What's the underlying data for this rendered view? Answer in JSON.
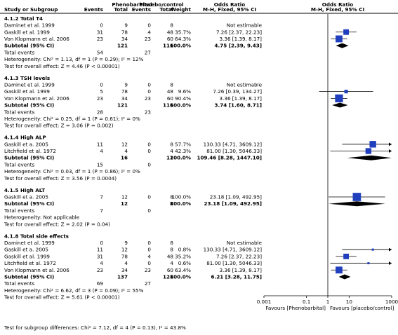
{
  "chart_data": {
    "type": "forest",
    "title": "",
    "header": {
      "study_label": "Study or Subgroup",
      "group1_label": "Phenobarbital",
      "group2_label": "Placebo/control",
      "events_label": "Events",
      "total_label": "Total",
      "weight_label": "Weight",
      "or_label": "Odds Ratio",
      "or_method": "M-H, Fixed, 95% CI",
      "plot_label": "Odds Ratio",
      "plot_method": "M-H, Fixed, 95% CI"
    },
    "axis": {
      "scale": "log",
      "range": [
        0.001,
        1000
      ],
      "ticks": [
        0.001,
        0.1,
        1,
        10,
        1000
      ],
      "tick_labels": [
        "0.001",
        "0.1",
        "1",
        "10",
        "1000"
      ],
      "favours_left": "Favours [Phenobarbital]",
      "favours_right": "Favours [placebo/control]"
    },
    "overall_subgroup_test": "Test for subgroup differences: Chi² = 7.12, df = 4 (P = 0.13), I² = 43.8%",
    "subgroups": [
      {
        "title": "4.1.2 Total T4",
        "studies": [
          {
            "name": "Daminet et al. 1999",
            "e1": "0",
            "n1": "9",
            "e2": "0",
            "n2": "8",
            "weight": "",
            "ci_text": "Not estimable",
            "or": null,
            "lo": null,
            "hi": null
          },
          {
            "name": "Gaskill et al. 1999",
            "e1": "31",
            "n1": "78",
            "e2": "4",
            "n2": "48",
            "weight": "35.7%",
            "ci_text": "7.26 [2.37, 22.23]",
            "or": 7.26,
            "lo": 2.37,
            "hi": 22.23
          },
          {
            "name": "Von Klopmann et al. 2006",
            "e1": "23",
            "n1": "34",
            "e2": "23",
            "n2": "60",
            "weight": "64.3%",
            "ci_text": "3.36 [1.39, 8.17]",
            "or": 3.36,
            "lo": 1.39,
            "hi": 8.17
          }
        ],
        "subtotal": {
          "label": "Subtotal (95% CI)",
          "n1": "121",
          "n2": "116",
          "weight": "100.0%",
          "ci_text": "4.75 [2.39, 9.43]",
          "or": 4.75,
          "lo": 2.39,
          "hi": 9.43
        },
        "total_events": {
          "label": "Total events",
          "e1": "54",
          "e2": "27"
        },
        "heterogeneity": "Heterogeneity: Chi² = 1.13, df = 1 (P = 0.29); I² = 12%",
        "overall_effect": "Test for overall effect: Z = 4.46 (P < 0.00001)"
      },
      {
        "title": "4.1.3 TSH levels",
        "studies": [
          {
            "name": "Daminet et al. 1999",
            "e1": "0",
            "n1": "9",
            "e2": "0",
            "n2": "8",
            "weight": "",
            "ci_text": "Not estimable",
            "or": null,
            "lo": null,
            "hi": null
          },
          {
            "name": "Gaskill et al. 1999",
            "e1": "5",
            "n1": "78",
            "e2": "0",
            "n2": "48",
            "weight": "9.6%",
            "ci_text": "7.26 [0.39, 134.27]",
            "or": 7.26,
            "lo": 0.39,
            "hi": 134.27
          },
          {
            "name": "Von Klopmann et al. 2006",
            "e1": "23",
            "n1": "34",
            "e2": "23",
            "n2": "60",
            "weight": "90.4%",
            "ci_text": "3.36 [1.39, 8.17]",
            "or": 3.36,
            "lo": 1.39,
            "hi": 8.17
          }
        ],
        "subtotal": {
          "label": "Subtotal (95% CI)",
          "n1": "121",
          "n2": "116",
          "weight": "100.0%",
          "ci_text": "3.74 [1.60, 8.71]",
          "or": 3.74,
          "lo": 1.6,
          "hi": 8.71
        },
        "total_events": {
          "label": "Total events",
          "e1": "28",
          "e2": "23"
        },
        "heterogeneity": "Heterogeneity: Chi² = 0.25, df = 1 (P = 0.61); I² = 0%",
        "overall_effect": "Test for overall effect: Z = 3.06 (P = 0.002)"
      },
      {
        "title": "4.1.4 High ALP",
        "studies": [
          {
            "name": "Gaskill et a. 2005",
            "e1": "11",
            "n1": "12",
            "e2": "0",
            "n2": "8",
            "weight": "57.7%",
            "ci_text": "130.33 [4.71, 3609.12]",
            "or": 130.33,
            "lo": 4.71,
            "hi": 3609.12
          },
          {
            "name": "Litchfield et al. 1972",
            "e1": "4",
            "n1": "4",
            "e2": "0",
            "n2": "4",
            "weight": "42.3%",
            "ci_text": "81.00 [1.30, 5046.33]",
            "or": 81.0,
            "lo": 1.3,
            "hi": 5046.33
          }
        ],
        "subtotal": {
          "label": "Subtotal (95% CI)",
          "n1": "16",
          "n2": "12",
          "weight": "100.0%",
          "ci_text": "109.46 [8.28, 1447.10]",
          "or": 109.46,
          "lo": 8.28,
          "hi": 1447.1
        },
        "total_events": {
          "label": "Total events",
          "e1": "15",
          "e2": "0"
        },
        "heterogeneity": "Heterogeneity: Chi² = 0.03, df = 1 (P = 0.86); I² = 0%",
        "overall_effect": "Test for overall effect: Z = 3.56 (P = 0.0004)"
      },
      {
        "title": "4.1.5 High ALT",
        "studies": [
          {
            "name": "Gaskill et a. 2005",
            "e1": "7",
            "n1": "12",
            "e2": "0",
            "n2": "8",
            "weight": "100.0%",
            "ci_text": "23.18 [1.09, 492.95]",
            "or": 23.18,
            "lo": 1.09,
            "hi": 492.95
          }
        ],
        "subtotal": {
          "label": "Subtotal (95% CI)",
          "n1": "12",
          "n2": "8",
          "weight": "100.0%",
          "ci_text": "23.18 [1.09, 492.95]",
          "or": 23.18,
          "lo": 1.09,
          "hi": 492.95
        },
        "total_events": {
          "label": "Total events",
          "e1": "7",
          "e2": "0"
        },
        "heterogeneity": "Heterogeneity: Not applicable",
        "overall_effect": "Test for overall effect: Z = 2.02 (P = 0.04)"
      },
      {
        "title": "4.1.8 Total side effects",
        "studies": [
          {
            "name": "Daminet et al. 1999",
            "e1": "0",
            "n1": "9",
            "e2": "0",
            "n2": "8",
            "weight": "",
            "ci_text": "Not estimable",
            "or": null,
            "lo": null,
            "hi": null
          },
          {
            "name": "Gaskill et a. 2005",
            "e1": "11",
            "n1": "12",
            "e2": "0",
            "n2": "8",
            "weight": "0.8%",
            "ci_text": "130.33 [4.71, 3609.12]",
            "or": 130.33,
            "lo": 4.71,
            "hi": 3609.12
          },
          {
            "name": "Gaskill et al. 1999",
            "e1": "31",
            "n1": "78",
            "e2": "4",
            "n2": "48",
            "weight": "35.2%",
            "ci_text": "7.26 [2.37, 22.23]",
            "or": 7.26,
            "lo": 2.37,
            "hi": 22.23
          },
          {
            "name": "Litchfield et al. 1972",
            "e1": "4",
            "n1": "4",
            "e2": "0",
            "n2": "4",
            "weight": "0.6%",
            "ci_text": "81.00 [1.30, 5046.33]",
            "or": 81.0,
            "lo": 1.3,
            "hi": 5046.33
          },
          {
            "name": "Von Klopmann et al. 2006",
            "e1": "23",
            "n1": "34",
            "e2": "23",
            "n2": "60",
            "weight": "63.4%",
            "ci_text": "3.36 [1.39, 8.17]",
            "or": 3.36,
            "lo": 1.39,
            "hi": 8.17
          }
        ],
        "subtotal": {
          "label": "Subtotal (95% CI)",
          "n1": "137",
          "n2": "128",
          "weight": "100.0%",
          "ci_text": "6.21 [3.28, 11.75]",
          "or": 6.21,
          "lo": 3.28,
          "hi": 11.75
        },
        "total_events": {
          "label": "Total events",
          "e1": "69",
          "e2": "27"
        },
        "heterogeneity": "Heterogeneity: Chi² = 6.62, df = 3 (P = 0.09); I² = 55%",
        "overall_effect": "Test for overall effect: Z = 5.61 (P < 0.00001)"
      }
    ],
    "colors": {
      "square": "#1f3fbf",
      "diamond": "#000000",
      "line": "#000000",
      "header_rule": "#000000"
    }
  }
}
